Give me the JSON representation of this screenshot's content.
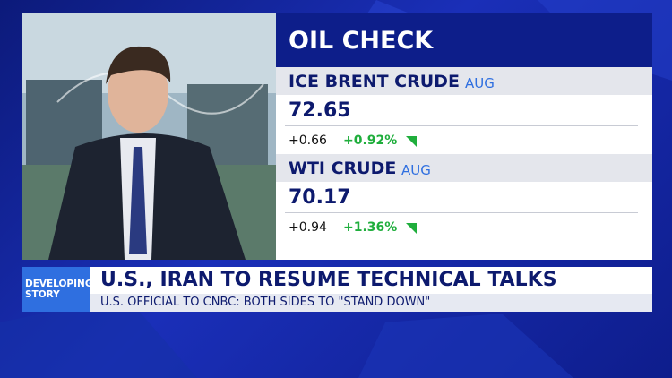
{
  "panel": {
    "title": "OIL CHECK",
    "quotes": [
      {
        "name": "ICE BRENT CRUDE",
        "month": "AUG",
        "price": "72.65",
        "change": "+0.66",
        "percent": "+0.92%"
      },
      {
        "name": "WTI CRUDE",
        "month": "AUG",
        "price": "70.17",
        "change": "+0.94",
        "percent": "+1.36%"
      }
    ]
  },
  "banner": {
    "label": [
      "DEVELOPING",
      "STORY"
    ],
    "headline": "U.S., IRAN TO RESUME TECHNICAL TALKS",
    "subheadline": "U.S. OFFICIAL TO CNBC: BOTH SIDES TO \"STAND DOWN\""
  }
}
